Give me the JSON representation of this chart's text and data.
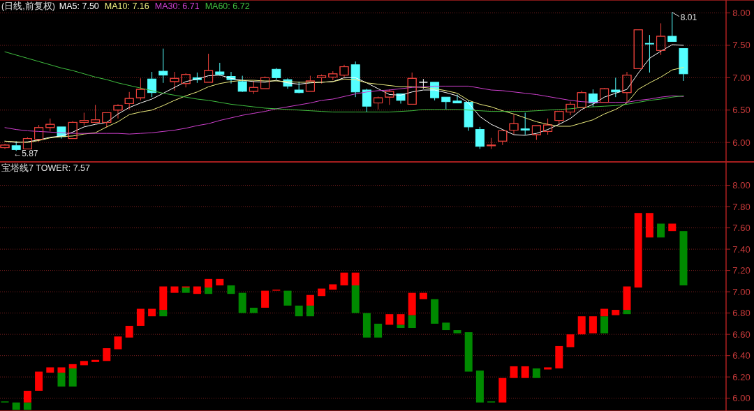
{
  "chart_data": [
    {
      "type": "candlestick",
      "title": "(日线,前复权)",
      "legend": "top left",
      "grid": "y",
      "categories": [
        null,
        null,
        null,
        null,
        null,
        null,
        null,
        null,
        null,
        null,
        null,
        null,
        null,
        null,
        null,
        null,
        null,
        null,
        null,
        null,
        null,
        null,
        null,
        null,
        null,
        null,
        null,
        null,
        null,
        null,
        null,
        null,
        null,
        null,
        null,
        null,
        null,
        null,
        null,
        null,
        null,
        null,
        null,
        null,
        null,
        null,
        null,
        null,
        null,
        null,
        null,
        null,
        null,
        null,
        null,
        null,
        null,
        null,
        null,
        null,
        null
      ],
      "ohlc": [
        [
          5.92,
          5.98,
          5.9,
          5.96
        ],
        [
          5.95,
          6.02,
          5.87,
          5.89
        ],
        [
          5.9,
          6.08,
          5.9,
          6.06
        ],
        [
          6.05,
          6.27,
          6.01,
          6.23
        ],
        [
          6.23,
          6.37,
          6.17,
          6.28
        ],
        [
          6.24,
          6.24,
          6.06,
          6.09
        ],
        [
          6.06,
          6.33,
          6.06,
          6.31
        ],
        [
          6.31,
          6.46,
          6.26,
          6.34
        ],
        [
          6.31,
          6.58,
          6.3,
          6.35
        ],
        [
          6.31,
          6.46,
          6.23,
          6.46
        ],
        [
          6.5,
          6.59,
          6.37,
          6.57
        ],
        [
          6.6,
          6.78,
          6.51,
          6.68
        ],
        [
          6.69,
          6.99,
          6.65,
          6.82
        ],
        [
          6.98,
          7.09,
          6.7,
          6.77
        ],
        [
          7.1,
          7.45,
          6.92,
          7.04
        ],
        [
          6.94,
          7.09,
          6.8,
          6.99
        ],
        [
          6.91,
          7.07,
          6.85,
          7.05
        ],
        [
          7.0,
          7.08,
          6.92,
          6.97
        ],
        [
          6.93,
          7.37,
          6.93,
          7.11
        ],
        [
          7.09,
          7.23,
          7.03,
          7.05
        ],
        [
          7.02,
          7.09,
          6.91,
          6.97
        ],
        [
          6.94,
          7.03,
          6.78,
          6.79
        ],
        [
          6.79,
          6.95,
          6.75,
          6.85
        ],
        [
          6.83,
          7.02,
          6.83,
          7.0
        ],
        [
          7.13,
          7.15,
          6.97,
          7.0
        ],
        [
          6.97,
          6.99,
          6.83,
          6.87
        ],
        [
          6.81,
          6.94,
          6.76,
          6.77
        ],
        [
          6.79,
          7.03,
          6.79,
          6.95
        ],
        [
          7.0,
          7.05,
          6.91,
          7.03
        ],
        [
          7.01,
          7.1,
          6.96,
          7.06
        ],
        [
          7.04,
          7.2,
          7.01,
          7.17
        ],
        [
          7.2,
          7.25,
          6.7,
          6.78
        ],
        [
          6.81,
          6.83,
          6.47,
          6.56
        ],
        [
          6.61,
          6.71,
          6.51,
          6.69
        ],
        [
          6.7,
          6.82,
          6.58,
          6.79
        ],
        [
          6.75,
          6.75,
          6.6,
          6.65
        ],
        [
          6.59,
          7.08,
          6.59,
          6.99
        ],
        [
          6.93,
          6.98,
          6.83,
          6.93
        ],
        [
          6.93,
          6.93,
          6.65,
          6.69
        ],
        [
          6.7,
          6.7,
          6.51,
          6.63
        ],
        [
          6.64,
          6.74,
          6.61,
          6.61
        ],
        [
          6.62,
          6.65,
          6.18,
          6.24
        ],
        [
          6.2,
          6.24,
          5.9,
          5.94
        ],
        [
          5.95,
          6.07,
          5.9,
          5.96
        ],
        [
          6.02,
          6.18,
          5.96,
          6.18
        ],
        [
          6.19,
          6.43,
          6.13,
          6.29
        ],
        [
          6.21,
          6.46,
          6.12,
          6.19
        ],
        [
          6.12,
          6.26,
          6.04,
          6.26
        ],
        [
          6.17,
          6.37,
          6.12,
          6.27
        ],
        [
          6.34,
          6.48,
          6.28,
          6.48
        ],
        [
          6.47,
          6.63,
          6.42,
          6.59
        ],
        [
          6.54,
          6.8,
          6.54,
          6.77
        ],
        [
          6.75,
          6.82,
          6.55,
          6.61
        ],
        [
          6.62,
          6.84,
          6.62,
          6.83
        ],
        [
          6.81,
          7.0,
          6.7,
          6.78
        ],
        [
          6.77,
          7.09,
          6.62,
          7.04
        ],
        [
          7.14,
          7.74,
          7.14,
          7.74
        ],
        [
          7.53,
          7.66,
          7.08,
          7.52
        ],
        [
          7.42,
          7.84,
          7.35,
          7.64
        ],
        [
          7.64,
          8.01,
          7.56,
          7.56
        ],
        [
          7.45,
          7.45,
          6.95,
          7.06
        ]
      ],
      "colors": [
        "#e8403a",
        "#54ffff",
        "#e8403a",
        "#e8403a",
        "#e8403a",
        "#54ffff",
        "#e8403a",
        "#e8403a",
        "#e8403a",
        "#e8403a",
        "#e8403a",
        "#e8403a",
        "#e8403a",
        "#54ffff",
        "#54ffff",
        "#e8403a",
        "#e8403a",
        "#54ffff",
        "#e8403a",
        "#54ffff",
        "#54ffff",
        "#54ffff",
        "#e8403a",
        "#e8403a",
        "#54ffff",
        "#54ffff",
        "#54ffff",
        "#e8403a",
        "#e8403a",
        "#e8403a",
        "#e8403a",
        "#54ffff",
        "#54ffff",
        "#e8403a",
        "#e8403a",
        "#54ffff",
        "#e8403a",
        "#ffffff",
        "#54ffff",
        "#54ffff",
        "#54ffff",
        "#54ffff",
        "#54ffff",
        "#e8403a",
        "#e8403a",
        "#e8403a",
        "#54ffff",
        "#e8403a",
        "#e8403a",
        "#e8403a",
        "#e8403a",
        "#e8403a",
        "#54ffff",
        "#e8403a",
        "#54ffff",
        "#e8403a",
        "#e8403a",
        "#54ffff",
        "#e8403a",
        "#54ffff",
        "#54ffff"
      ],
      "series": [
        {
          "type": "line",
          "name": "MA5: 7.50",
          "color": "#ffffff",
          "values": [
            6.02,
            6.0,
            6.01,
            6.04,
            6.08,
            6.1,
            6.16,
            6.24,
            6.28,
            6.31,
            6.44,
            6.54,
            6.61,
            6.67,
            6.76,
            6.85,
            6.94,
            6.98,
            7.03,
            7.04,
            6.99,
            6.96,
            6.94,
            6.93,
            6.96,
            6.92,
            6.9,
            6.92,
            6.93,
            6.94,
            7.0,
            7.0,
            6.92,
            6.83,
            6.74,
            6.73,
            6.78,
            6.81,
            6.81,
            6.77,
            6.72,
            6.61,
            6.4,
            6.28,
            6.2,
            6.12,
            6.11,
            6.14,
            6.2,
            6.28,
            6.37,
            6.51,
            6.59,
            6.7,
            6.76,
            6.82,
            7.07,
            7.3,
            7.41,
            7.51,
            7.5
          ]
        },
        {
          "type": "line",
          "name": "MA10: 7.16",
          "color": "#f0f080",
          "values": [
            6.02,
            6.01,
            6.0,
            6.03,
            6.07,
            6.09,
            6.1,
            6.13,
            6.15,
            6.24,
            6.32,
            6.43,
            6.47,
            6.5,
            6.57,
            6.65,
            6.72,
            6.78,
            6.86,
            6.91,
            6.94,
            6.96,
            6.96,
            6.95,
            6.95,
            6.94,
            6.93,
            6.93,
            6.93,
            6.94,
            6.98,
            6.97,
            6.92,
            6.9,
            6.88,
            6.86,
            6.86,
            6.85,
            6.83,
            6.8,
            6.76,
            6.65,
            6.59,
            6.55,
            6.49,
            6.44,
            6.38,
            6.32,
            6.28,
            6.25,
            6.25,
            6.3,
            6.35,
            6.44,
            6.51,
            6.61,
            6.82,
            6.92,
            7.01,
            7.12,
            7.16
          ]
        },
        {
          "type": "line",
          "name": "MA30: 6.71",
          "color": "#d040d0",
          "values": [
            6.23,
            6.2,
            6.18,
            6.17,
            6.16,
            6.15,
            6.14,
            6.14,
            6.14,
            6.14,
            6.14,
            6.13,
            6.14,
            6.15,
            6.17,
            6.19,
            6.22,
            6.26,
            6.29,
            6.34,
            6.38,
            6.42,
            6.45,
            6.48,
            6.52,
            6.55,
            6.58,
            6.61,
            6.65,
            6.67,
            6.71,
            6.75,
            6.78,
            6.8,
            6.81,
            6.83,
            6.85,
            6.86,
            6.87,
            6.87,
            6.87,
            6.87,
            6.84,
            6.81,
            6.8,
            6.78,
            6.76,
            6.74,
            6.71,
            6.68,
            6.65,
            6.63,
            6.62,
            6.62,
            6.62,
            6.62,
            6.65,
            6.67,
            6.7,
            6.72,
            6.71
          ]
        },
        {
          "type": "line",
          "name": "MA60: 6.72",
          "color": "#40c040",
          "values": [
            7.4,
            7.35,
            7.3,
            7.25,
            7.2,
            7.15,
            7.11,
            7.06,
            7.01,
            6.97,
            6.92,
            6.88,
            6.84,
            6.8,
            6.76,
            6.73,
            6.7,
            6.67,
            6.65,
            6.62,
            6.59,
            6.57,
            6.55,
            6.53,
            6.52,
            6.51,
            6.5,
            6.49,
            6.48,
            6.47,
            6.47,
            6.47,
            6.47,
            6.47,
            6.47,
            6.48,
            6.49,
            6.51,
            6.51,
            6.51,
            6.51,
            6.5,
            6.49,
            6.48,
            6.48,
            6.48,
            6.48,
            6.49,
            6.5,
            6.51,
            6.52,
            6.54,
            6.55,
            6.56,
            6.57,
            6.59,
            6.62,
            6.65,
            6.67,
            6.7,
            6.72
          ]
        }
      ],
      "ylim": [
        5.7,
        8.2
      ],
      "yticks": [
        {
          "value": 6,
          "label": "6.00"
        },
        {
          "value": 6.5,
          "label": "6.50"
        },
        {
          "value": 7,
          "label": "7.00"
        },
        {
          "value": 7.5,
          "label": "7.50"
        },
        {
          "value": 8,
          "label": "8.00"
        }
      ],
      "annotations": [
        "8.01",
        "←5.87"
      ]
    },
    {
      "type": "bar",
      "title": "宝塔线7  TOWER: 7.57",
      "grid": "y",
      "categories": [
        null,
        null,
        null,
        null,
        null,
        null,
        null,
        null,
        null,
        null,
        null,
        null,
        null,
        null,
        null,
        null,
        null,
        null,
        null,
        null,
        null,
        null,
        null,
        null,
        null,
        null,
        null,
        null,
        null,
        null,
        null,
        null,
        null,
        null,
        null,
        null,
        null,
        null,
        null,
        null,
        null,
        null,
        null,
        null,
        null,
        null,
        null,
        null,
        null,
        null,
        null,
        null,
        null,
        null,
        null,
        null,
        null,
        null,
        null,
        null,
        null
      ],
      "series": [
        {
          "color": "#008a00",
          "base": [
            5.96,
            5.89,
            5.89,
            null,
            null,
            6.11,
            6.11,
            null,
            null,
            null,
            null,
            null,
            null,
            null,
            6.77,
            null,
            6.99,
            null,
            6.98,
            null,
            6.98,
            6.8,
            6.8,
            null,
            null,
            6.87,
            6.77,
            6.77,
            null,
            null,
            null,
            6.8,
            6.57,
            6.57,
            null,
            6.66,
            6.66,
            null,
            6.7,
            6.64,
            6.61,
            6.25,
            5.96,
            5.96,
            null,
            null,
            null,
            6.19,
            null,
            null,
            null,
            null,
            null,
            6.61,
            null,
            6.79,
            null,
            null,
            7.51,
            null,
            7.06
          ],
          "values": [
            0.01,
            0.07,
            0.07,
            null,
            null,
            0.13,
            0.17,
            null,
            null,
            null,
            null,
            null,
            null,
            null,
            0.06,
            null,
            0.05,
            null,
            0.06,
            null,
            0.08,
            0.19,
            0.05,
            null,
            null,
            0.14,
            0.1,
            0.1,
            null,
            null,
            null,
            0.26,
            0.23,
            0.13,
            null,
            0.03,
            0.12,
            null,
            0.23,
            0.07,
            0.03,
            0.37,
            0.3,
            0.01,
            null,
            null,
            null,
            0.09,
            null,
            null,
            null,
            null,
            null,
            0.16,
            null,
            0.04,
            null,
            null,
            0.13,
            null,
            0.51
          ]
        },
        {
          "color": "#ff0000",
          "base": [
            null,
            null,
            5.96,
            6.07,
            6.24,
            6.24,
            6.28,
            6.31,
            6.34,
            6.35,
            6.46,
            6.57,
            6.68,
            6.77,
            6.83,
            6.99,
            7.04,
            6.98,
            7.04,
            7.06,
            null,
            null,
            null,
            6.85,
            7.01,
            null,
            null,
            6.87,
            6.96,
            7.02,
            7.06,
            7.06,
            null,
            null,
            6.69,
            6.69,
            6.78,
            6.93,
            null,
            null,
            null,
            null,
            null,
            null,
            5.96,
            6.19,
            6.19,
            null,
            6.27,
            6.28,
            6.48,
            6.6,
            6.61,
            6.77,
            6.78,
            6.83,
            7.04,
            7.51,
            null,
            7.57,
            null
          ],
          "values": [
            null,
            null,
            0.11,
            0.18,
            0.05,
            0.05,
            0.04,
            0.04,
            0.02,
            0.12,
            0.12,
            0.11,
            0.16,
            0.07,
            0.22,
            0.06,
            0.01,
            0.07,
            0.08,
            0.06,
            null,
            null,
            null,
            0.16,
            0.01,
            null,
            null,
            0.1,
            0.07,
            0.05,
            0.12,
            0.12,
            null,
            null,
            0.1,
            0.1,
            0.21,
            0.06,
            null,
            null,
            null,
            null,
            null,
            null,
            0.23,
            0.11,
            0.11,
            null,
            0.02,
            0.21,
            0.12,
            0.17,
            0.16,
            0.07,
            0.05,
            0.22,
            0.7,
            0.23,
            null,
            0.07,
            null
          ]
        }
      ],
      "ylim": [
        5.88,
        8.22
      ],
      "yticks": [
        {
          "value": 6,
          "label": "6.00"
        },
        {
          "value": 6.2,
          "label": "6.20"
        },
        {
          "value": 6.4,
          "label": "6.40"
        },
        {
          "value": 6.6,
          "label": "6.60"
        },
        {
          "value": 6.8,
          "label": "6.80"
        },
        {
          "value": 7,
          "label": "7.00"
        },
        {
          "value": 7.2,
          "label": "7.20"
        },
        {
          "value": 7.4,
          "label": "7.40"
        },
        {
          "value": 7.6,
          "label": "7.60"
        },
        {
          "value": 7.8,
          "label": "7.80"
        },
        {
          "value": 8,
          "label": "8.00"
        }
      ]
    }
  ]
}
